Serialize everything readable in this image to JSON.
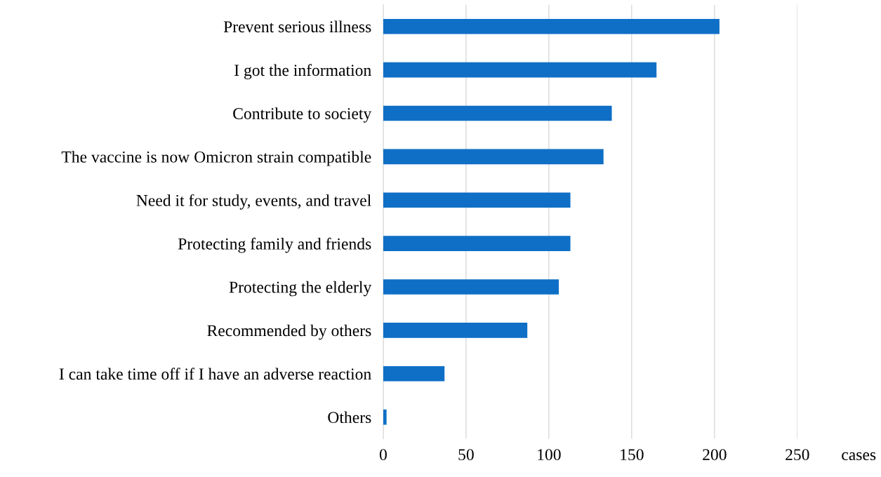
{
  "chart_data": {
    "type": "bar",
    "orientation": "horizontal",
    "xlabel": "cases",
    "categories": [
      "Prevent serious illness",
      "I got the information",
      "Contribute to society",
      "The vaccine is now Omicron strain compatible",
      "Need it for study, events, and travel",
      "Protecting family and friends",
      "Protecting the elderly",
      "Recommended by others",
      "I can take time off if I have an adverse reaction",
      "Others"
    ],
    "values": [
      203,
      165,
      138,
      133,
      113,
      113,
      106,
      87,
      37,
      2
    ],
    "color": "#0f6fc6",
    "xlim": [
      0,
      250
    ],
    "xticks": [
      0,
      50,
      100,
      150,
      200,
      250
    ],
    "grid": "x",
    "legend": false
  }
}
